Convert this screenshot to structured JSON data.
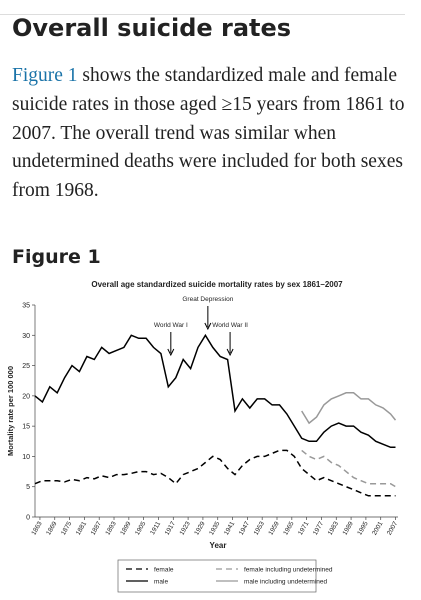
{
  "header": {
    "title": "Overall suicide rates"
  },
  "paragraph": {
    "link": "Figure 1",
    "text": "shows the standardized male and female suicide rates in those aged ≥15 years from 1861 to 2007. The overall trend was similar when undetermined deaths were included for both sexes from 1968."
  },
  "figure": {
    "label": "Figure 1"
  },
  "chart_data": {
    "type": "line",
    "title": "Overall age standardized suicide mortality rates by sex 1861–2007",
    "x_label": "Year",
    "y_label": "Mortality rate per 100 000",
    "xlim": [
      1861,
      2008
    ],
    "ylim": [
      0,
      35
    ],
    "xticks": [
      1863,
      1869,
      1875,
      1881,
      1887,
      1893,
      1899,
      1905,
      1911,
      1917,
      1923,
      1929,
      1935,
      1941,
      1947,
      1953,
      1959,
      1965,
      1971,
      1977,
      1983,
      1989,
      1995,
      2001,
      2007
    ],
    "yticks": [
      0,
      5,
      10,
      15,
      20,
      25,
      30,
      35
    ],
    "legend": "bottom",
    "annotations": [
      {
        "text": "World War I",
        "x": 1916
      },
      {
        "text": "Great Depression",
        "x": 1931
      },
      {
        "text": "World War II",
        "x": 1940
      }
    ],
    "x": [
      1861,
      1864,
      1867,
      1870,
      1873,
      1876,
      1879,
      1882,
      1885,
      1888,
      1891,
      1894,
      1897,
      1900,
      1903,
      1906,
      1909,
      1912,
      1915,
      1918,
      1921,
      1924,
      1927,
      1930,
      1933,
      1936,
      1939,
      1942,
      1945,
      1948,
      1951,
      1954,
      1957,
      1960,
      1963,
      1966,
      1969,
      1972,
      1975,
      1978,
      1981,
      1984,
      1987,
      1990,
      1993,
      1996,
      1999,
      2002,
      2005,
      2007
    ],
    "series": [
      {
        "name": "female",
        "color": "#000000",
        "dashed": true,
        "values": [
          5.5,
          6,
          6,
          6,
          5.8,
          6.2,
          6,
          6.5,
          6.3,
          6.8,
          6.5,
          7,
          7,
          7.2,
          7.5,
          7.5,
          7,
          7.2,
          6.5,
          5.5,
          7,
          7.5,
          8,
          9,
          10,
          9.5,
          8,
          7,
          8.5,
          9.5,
          10,
          10,
          10.5,
          11,
          11,
          10,
          8,
          7,
          6,
          6.5,
          6,
          5.5,
          5,
          4.5,
          4,
          3.5,
          3.5,
          3.5,
          3.5,
          3.5
        ]
      },
      {
        "name": "male",
        "color": "#000000",
        "dashed": false,
        "values": [
          20,
          19,
          21.5,
          20.5,
          23,
          25,
          24,
          26.5,
          26,
          28,
          27,
          27.5,
          28,
          30,
          29.5,
          29.5,
          28,
          27,
          21.5,
          23,
          26,
          24.5,
          28,
          30,
          28,
          26.5,
          26,
          17.5,
          19.5,
          18,
          19.5,
          19.5,
          18.5,
          18.5,
          17,
          15,
          13,
          12.5,
          12.5,
          14,
          15,
          15.5,
          15,
          15,
          14,
          13.5,
          12.5,
          12,
          11.5,
          11.5
        ]
      },
      {
        "name": "female including undetermined",
        "color": "#999999",
        "dashed": true,
        "values": [
          null,
          null,
          null,
          null,
          null,
          null,
          null,
          null,
          null,
          null,
          null,
          null,
          null,
          null,
          null,
          null,
          null,
          null,
          null,
          null,
          null,
          null,
          null,
          null,
          null,
          null,
          null,
          null,
          null,
          null,
          null,
          null,
          null,
          null,
          null,
          null,
          11,
          10,
          9.5,
          10,
          9,
          8.5,
          7.5,
          6.5,
          6,
          5.5,
          5.5,
          5.5,
          5.5,
          5
        ]
      },
      {
        "name": "male including undetermined",
        "color": "#999999",
        "dashed": false,
        "values": [
          null,
          null,
          null,
          null,
          null,
          null,
          null,
          null,
          null,
          null,
          null,
          null,
          null,
          null,
          null,
          null,
          null,
          null,
          null,
          null,
          null,
          null,
          null,
          null,
          null,
          null,
          null,
          null,
          null,
          null,
          null,
          null,
          null,
          null,
          null,
          null,
          17.5,
          15.5,
          16.5,
          18.5,
          19.5,
          20,
          20.5,
          20.5,
          19.5,
          19.5,
          18.5,
          18,
          17,
          16
        ]
      }
    ]
  }
}
